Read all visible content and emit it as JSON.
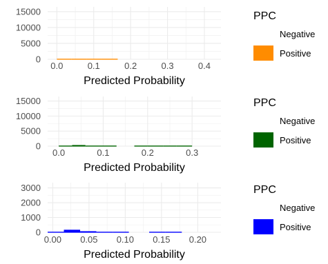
{
  "chart_data": [
    {
      "type": "histogram",
      "xlabel": "Predicted Probability",
      "ylabel": "",
      "xlim": [
        -0.025,
        0.445
      ],
      "ylim": [
        0,
        16500
      ],
      "xticks": [
        0.0,
        0.1,
        0.2,
        0.3,
        0.4
      ],
      "xtick_labels": [
        "0.0",
        "0.1",
        "0.2",
        "0.3",
        "0.4"
      ],
      "yticks": [
        0,
        5000,
        10000,
        15000
      ],
      "ytick_labels": [
        "0",
        "5000",
        "10000",
        "15000"
      ],
      "grid": true,
      "legend": {
        "title": "PPC",
        "entries": [
          "Negative",
          "Positive"
        ],
        "colors": [
          "#ffffff",
          "#ff8c00"
        ],
        "placement": "right"
      },
      "series": [
        {
          "name": "Positive",
          "color": "#ff8c00",
          "bins": [
            [
              0.0,
              0.04,
              0
            ],
            [
              0.04,
              0.08,
              0
            ],
            [
              0.08,
              0.12,
              0
            ],
            [
              0.12,
              0.165,
              0
            ]
          ]
        }
      ]
    },
    {
      "type": "histogram",
      "xlabel": "Predicted Probability",
      "ylabel": "",
      "xlim": [
        -0.025,
        0.365
      ],
      "ylim": [
        0,
        16500
      ],
      "xticks": [
        0.0,
        0.1,
        0.2,
        0.3
      ],
      "xtick_labels": [
        "0.0",
        "0.1",
        "0.2",
        "0.3"
      ],
      "yticks": [
        0,
        5000,
        10000,
        15000
      ],
      "ytick_labels": [
        "0",
        "5000",
        "10000",
        "15000"
      ],
      "grid": true,
      "legend": {
        "title": "PPC",
        "entries": [
          "Negative",
          "Positive"
        ],
        "colors": [
          "#ffffff",
          "#006400"
        ],
        "placement": "right"
      },
      "series": [
        {
          "name": "Positive",
          "color": "#006400",
          "bins": [
            [
              0.0,
              0.03,
              150
            ],
            [
              0.03,
              0.06,
              500
            ],
            [
              0.06,
              0.09,
              150
            ],
            [
              0.09,
              0.13,
              100
            ],
            [
              0.17,
              0.2,
              100
            ],
            [
              0.2,
              0.235,
              100
            ],
            [
              0.235,
              0.265,
              100
            ],
            [
              0.265,
              0.3,
              80
            ]
          ]
        }
      ]
    },
    {
      "type": "histogram",
      "xlabel": "Predicted Probability",
      "ylabel": "",
      "xlim": [
        -0.007,
        0.232
      ],
      "ylim": [
        0,
        3350
      ],
      "xticks": [
        0.0,
        0.05,
        0.1,
        0.15,
        0.2
      ],
      "xtick_labels": [
        "0.00",
        "0.05",
        "0.10",
        "0.15",
        "0.20"
      ],
      "yticks": [
        0,
        1000,
        2000,
        3000
      ],
      "ytick_labels": [
        "0",
        "1000",
        "2000",
        "3000"
      ],
      "grid": true,
      "legend": {
        "title": "PPC",
        "entries": [
          "Negative",
          "Positive"
        ],
        "colors": [
          "#ffffff",
          "#0000ff"
        ],
        "placement": "right"
      },
      "series": [
        {
          "name": "Positive",
          "color": "#0000ff",
          "bins": [
            [
              -0.007,
              0.0154,
              50
            ],
            [
              0.0154,
              0.0378,
              200
            ],
            [
              0.0378,
              0.0602,
              100
            ],
            [
              0.0602,
              0.0826,
              20
            ],
            [
              0.0826,
              0.105,
              20
            ],
            [
              0.133,
              0.155,
              15
            ],
            [
              0.155,
              0.178,
              15
            ]
          ]
        }
      ]
    }
  ]
}
